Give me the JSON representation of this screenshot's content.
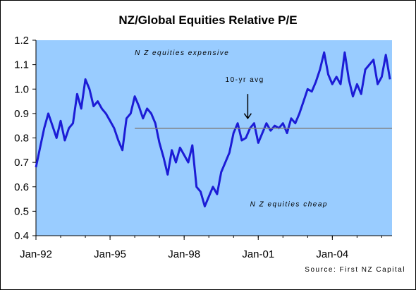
{
  "chart_data": {
    "type": "line",
    "title": "NZ/Global Equities Relative P/E",
    "xlabel": "",
    "ylabel": "",
    "ylim": [
      0.4,
      1.2
    ],
    "y_ticks": [
      "0.4",
      "0.5",
      "0.6",
      "0.7",
      "0.8",
      "0.9",
      "1.0",
      "1.1",
      "1.2"
    ],
    "x_ticks": [
      "Jan-92",
      "Jan-95",
      "Jan-98",
      "Jan-01",
      "Jan-04"
    ],
    "x_range": [
      "1992-01",
      "2006-06"
    ],
    "grid": false,
    "plot_background": "#99ccff",
    "series": [
      {
        "color": "#1c1cd6",
        "x": [
          "1992-01",
          "1992-03",
          "1992-05",
          "1992-07",
          "1992-09",
          "1992-11",
          "1993-01",
          "1993-03",
          "1993-05",
          "1993-07",
          "1993-09",
          "1993-11",
          "1994-01",
          "1994-03",
          "1994-05",
          "1994-07",
          "1994-09",
          "1994-11",
          "1995-01",
          "1995-03",
          "1995-05",
          "1995-07",
          "1995-09",
          "1995-11",
          "1996-01",
          "1996-03",
          "1996-05",
          "1996-07",
          "1996-09",
          "1996-11",
          "1997-01",
          "1997-03",
          "1997-05",
          "1997-07",
          "1997-09",
          "1997-11",
          "1998-01",
          "1998-03",
          "1998-05",
          "1998-07",
          "1998-09",
          "1998-11",
          "1999-01",
          "1999-03",
          "1999-05",
          "1999-07",
          "1999-09",
          "1999-11",
          "2000-01",
          "2000-03",
          "2000-05",
          "2000-07",
          "2000-09",
          "2000-11",
          "2001-01",
          "2001-03",
          "2001-05",
          "2001-07",
          "2001-09",
          "2001-11",
          "2002-01",
          "2002-03",
          "2002-05",
          "2002-07",
          "2002-09",
          "2002-11",
          "2003-01",
          "2003-03",
          "2003-05",
          "2003-07",
          "2003-09",
          "2003-11",
          "2004-01",
          "2004-03",
          "2004-05",
          "2004-07",
          "2004-09",
          "2004-11",
          "2005-01",
          "2005-03",
          "2005-05",
          "2005-07",
          "2005-09",
          "2005-11",
          "2006-01",
          "2006-03",
          "2006-05"
        ],
        "values": [
          0.68,
          0.76,
          0.84,
          0.9,
          0.85,
          0.8,
          0.87,
          0.79,
          0.84,
          0.86,
          0.98,
          0.92,
          1.04,
          1.0,
          0.93,
          0.95,
          0.92,
          0.9,
          0.87,
          0.84,
          0.79,
          0.75,
          0.88,
          0.9,
          0.97,
          0.93,
          0.88,
          0.92,
          0.9,
          0.86,
          0.78,
          0.72,
          0.65,
          0.75,
          0.7,
          0.76,
          0.73,
          0.7,
          0.77,
          0.6,
          0.58,
          0.52,
          0.56,
          0.6,
          0.57,
          0.66,
          0.7,
          0.74,
          0.82,
          0.86,
          0.79,
          0.8,
          0.84,
          0.86,
          0.78,
          0.82,
          0.86,
          0.83,
          0.85,
          0.84,
          0.86,
          0.82,
          0.88,
          0.86,
          0.9,
          0.95,
          1.0,
          0.99,
          1.03,
          1.08,
          1.15,
          1.06,
          1.02,
          1.05,
          1.02,
          1.15,
          1.04,
          0.97,
          1.02,
          0.98,
          1.08,
          1.1,
          1.12,
          1.02,
          1.05,
          1.14,
          1.04
        ]
      },
      {
        "name": "10-yr avg",
        "color": "#808080",
        "x": [
          "1996-01",
          "2006-06"
        ],
        "values": [
          0.84,
          0.84
        ]
      }
    ],
    "annotations": [
      {
        "text": "N Z equities expensive",
        "x": "1996-01",
        "y": 1.14
      },
      {
        "text": "10-yr avg",
        "x": "1999-09",
        "y": 1.03
      },
      {
        "text": "N Z equities cheap",
        "x": "2000-09",
        "y": 0.52
      }
    ],
    "source": "Source:  First NZ Capital"
  }
}
